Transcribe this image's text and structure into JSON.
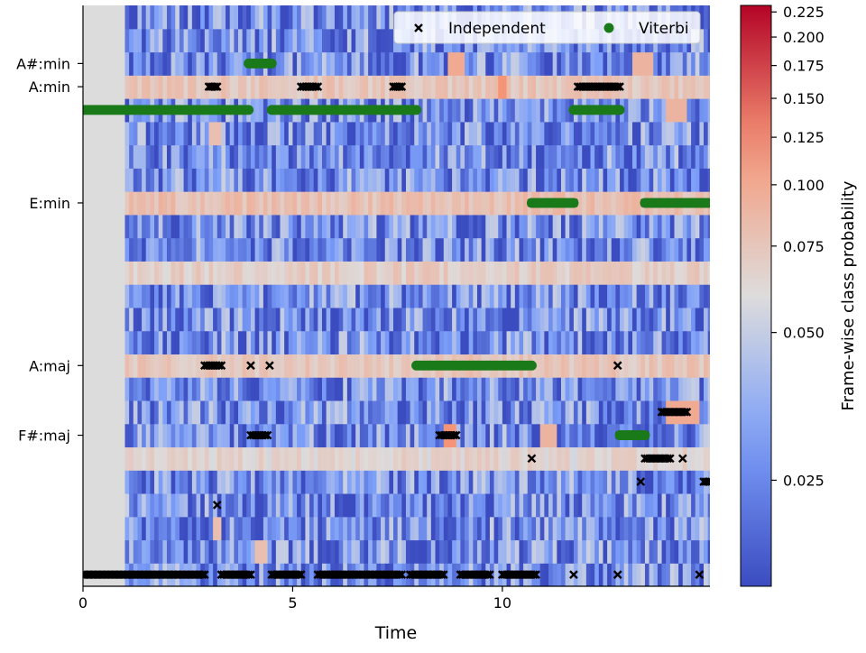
{
  "chart_data": {
    "type": "heatmap",
    "xlabel": "Time",
    "ylabel": "",
    "colorbar_label": "Frame-wise class probability",
    "colormap": "coolwarm",
    "xlim": [
      0,
      14.95
    ],
    "x_ticks": [
      0,
      5,
      10
    ],
    "n_classes": 25,
    "y_ticks": [
      {
        "label": "A#:min",
        "row": 22
      },
      {
        "label": "A:min",
        "row": 21
      },
      {
        "label": "E:min",
        "row": 16
      },
      {
        "label": "A:maj",
        "row": 9
      },
      {
        "label": "F#:maj",
        "row": 6
      }
    ],
    "colorbar": {
      "scale": "log",
      "vmin": 0.0152,
      "vmax": 0.232,
      "ticks": [
        {
          "label": "0.225",
          "value": 0.225
        },
        {
          "label": "0.200",
          "value": 0.2
        },
        {
          "label": "0.175",
          "value": 0.175
        },
        {
          "label": "0.150",
          "value": 0.15
        },
        {
          "label": "0.125",
          "value": 0.125
        },
        {
          "label": "0.100",
          "value": 0.1
        },
        {
          "label": "0.075",
          "value": 0.075
        },
        {
          "label": "0.050",
          "value": 0.05
        },
        {
          "label": "0.025",
          "value": 0.025
        }
      ]
    },
    "heatmap": {
      "silence_end_time": 1.0,
      "base_probability": 0.028,
      "high_rows": [
        {
          "row": 21,
          "p": 0.075
        },
        {
          "row": 16,
          "p": 0.08
        },
        {
          "row": 13,
          "p": 0.07
        },
        {
          "row": 9,
          "p": 0.075
        },
        {
          "row": 5,
          "p": 0.065
        }
      ],
      "high_segments": [
        {
          "row": 22,
          "t0": 8.6,
          "t1": 9.0,
          "p": 0.1
        },
        {
          "row": 22,
          "t0": 13.0,
          "t1": 13.5,
          "p": 0.09
        },
        {
          "row": 21,
          "t0": 9.8,
          "t1": 10.0,
          "p": 0.12
        },
        {
          "row": 6,
          "t0": 8.5,
          "t1": 8.8,
          "p": 0.12
        },
        {
          "row": 6,
          "t0": 10.8,
          "t1": 11.2,
          "p": 0.09
        },
        {
          "row": 7,
          "t0": 13.8,
          "t1": 14.6,
          "p": 0.1
        },
        {
          "row": 20,
          "t0": 13.8,
          "t1": 14.3,
          "p": 0.09
        },
        {
          "row": 1,
          "t0": 4.1,
          "t1": 4.4,
          "p": 0.08
        },
        {
          "row": 2,
          "t0": 3.05,
          "t1": 3.3,
          "p": 0.08
        },
        {
          "row": 19,
          "t0": 3.0,
          "t1": 3.3,
          "p": 0.08
        }
      ]
    },
    "series": [
      {
        "name": "Independent",
        "marker": "x",
        "color": "#000000",
        "segments": [
          {
            "row": 0,
            "t0": 0.0,
            "t1": 2.9
          },
          {
            "row": 0,
            "t0": 3.3,
            "t1": 4.0
          },
          {
            "row": 0,
            "t0": 4.5,
            "t1": 5.2
          },
          {
            "row": 0,
            "t0": 5.6,
            "t1": 7.6
          },
          {
            "row": 0,
            "t0": 7.8,
            "t1": 8.6
          },
          {
            "row": 0,
            "t0": 9.0,
            "t1": 9.7
          },
          {
            "row": 0,
            "t0": 10.0,
            "t1": 10.8
          },
          {
            "row": 0,
            "t0": 11.7,
            "t1": 11.7
          },
          {
            "row": 0,
            "t0": 12.75,
            "t1": 12.75
          },
          {
            "row": 0,
            "t0": 14.7,
            "t1": 14.7
          },
          {
            "row": 3,
            "t0": 3.2,
            "t1": 3.2
          },
          {
            "row": 4,
            "t0": 13.3,
            "t1": 13.3
          },
          {
            "row": 4,
            "t0": 14.8,
            "t1": 14.95
          },
          {
            "row": 5,
            "t0": 10.7,
            "t1": 10.7
          },
          {
            "row": 5,
            "t0": 13.4,
            "t1": 14.0
          },
          {
            "row": 5,
            "t0": 14.3,
            "t1": 14.3
          },
          {
            "row": 6,
            "t0": 4.0,
            "t1": 4.4
          },
          {
            "row": 6,
            "t0": 8.5,
            "t1": 8.9
          },
          {
            "row": 6,
            "t0": 12.8,
            "t1": 13.4
          },
          {
            "row": 7,
            "t0": 13.8,
            "t1": 14.4
          },
          {
            "row": 9,
            "t0": 2.9,
            "t1": 3.3
          },
          {
            "row": 9,
            "t0": 4.0,
            "t1": 4.0
          },
          {
            "row": 9,
            "t0": 4.45,
            "t1": 4.45
          },
          {
            "row": 9,
            "t0": 8.5,
            "t1": 8.6
          },
          {
            "row": 9,
            "t0": 8.9,
            "t1": 8.9
          },
          {
            "row": 9,
            "t0": 9.5,
            "t1": 10.0
          },
          {
            "row": 9,
            "t0": 12.75,
            "t1": 12.75
          },
          {
            "row": 16,
            "t0": 10.7,
            "t1": 11.7
          },
          {
            "row": 16,
            "t0": 13.4,
            "t1": 13.5
          },
          {
            "row": 16,
            "t0": 14.3,
            "t1": 14.7
          },
          {
            "row": 21,
            "t0": 3.0,
            "t1": 3.2
          },
          {
            "row": 21,
            "t0": 5.2,
            "t1": 5.6
          },
          {
            "row": 21,
            "t0": 7.4,
            "t1": 7.6
          },
          {
            "row": 21,
            "t0": 11.8,
            "t1": 12.8
          }
        ]
      },
      {
        "name": "Viterbi",
        "marker": "o",
        "color": "#1a7a1a",
        "segments": [
          {
            "row": 20,
            "t0": 0.0,
            "t1": 3.95
          },
          {
            "row": 20,
            "t0": 4.5,
            "t1": 7.95
          },
          {
            "row": 22,
            "t0": 3.95,
            "t1": 4.5
          },
          {
            "row": 9,
            "t0": 7.95,
            "t1": 10.7
          },
          {
            "row": 16,
            "t0": 10.7,
            "t1": 11.7
          },
          {
            "row": 20,
            "t0": 11.7,
            "t1": 12.8
          },
          {
            "row": 6,
            "t0": 12.8,
            "t1": 13.4
          },
          {
            "row": 16,
            "t0": 13.4,
            "t1": 14.95
          }
        ]
      }
    ],
    "legend_position": "top-right"
  }
}
